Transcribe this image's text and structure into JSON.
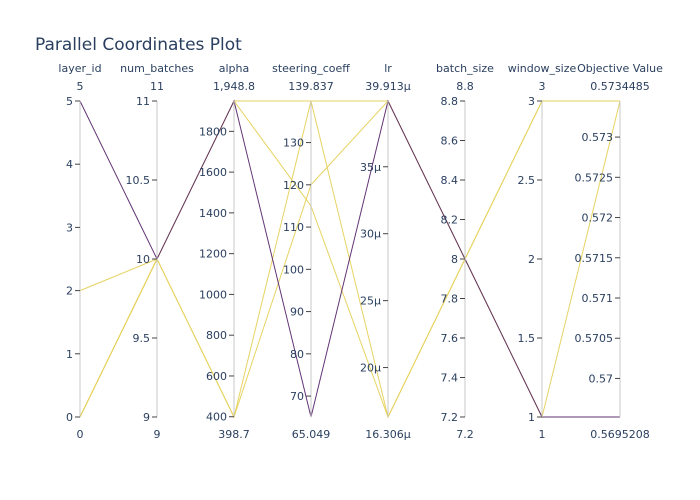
{
  "chart_data": {
    "type": "parallel_coordinates",
    "title": "Parallel Coordinates Plot",
    "axes": [
      {
        "label": "layer_id",
        "min": 0,
        "max": 5,
        "min_label": "0",
        "max_label": "5",
        "ticks": [
          {
            "v": 0,
            "t": "0"
          },
          {
            "v": 1,
            "t": "1"
          },
          {
            "v": 2,
            "t": "2"
          },
          {
            "v": 3,
            "t": "3"
          },
          {
            "v": 4,
            "t": "4"
          },
          {
            "v": 5,
            "t": "5"
          }
        ]
      },
      {
        "label": "num_batches",
        "min": 9,
        "max": 11,
        "min_label": "9",
        "max_label": "11",
        "ticks": [
          {
            "v": 9,
            "t": "9"
          },
          {
            "v": 9.5,
            "t": "9.5"
          },
          {
            "v": 10,
            "t": "10"
          },
          {
            "v": 10.5,
            "t": "10.5"
          },
          {
            "v": 11,
            "t": "11"
          }
        ]
      },
      {
        "label": "alpha",
        "min": 398.7,
        "max": 1948.8,
        "min_label": "398.7",
        "max_label": "1,948.8",
        "ticks": [
          {
            "v": 400,
            "t": "400"
          },
          {
            "v": 600,
            "t": "600"
          },
          {
            "v": 800,
            "t": "800"
          },
          {
            "v": 1000,
            "t": "1000"
          },
          {
            "v": 1200,
            "t": "1200"
          },
          {
            "v": 1400,
            "t": "1400"
          },
          {
            "v": 1600,
            "t": "1600"
          },
          {
            "v": 1800,
            "t": "1800"
          }
        ]
      },
      {
        "label": "steering_coeff",
        "min": 65.049,
        "max": 139.837,
        "min_label": "65.049",
        "max_label": "139.837",
        "ticks": [
          {
            "v": 70,
            "t": "70"
          },
          {
            "v": 80,
            "t": "80"
          },
          {
            "v": 90,
            "t": "90"
          },
          {
            "v": 100,
            "t": "100"
          },
          {
            "v": 110,
            "t": "110"
          },
          {
            "v": 120,
            "t": "120"
          },
          {
            "v": 130,
            "t": "130"
          }
        ]
      },
      {
        "label": "lr",
        "min": 16.306,
        "max": 39.913,
        "min_label": "16.306µ",
        "max_label": "39.913µ",
        "ticks": [
          {
            "v": 20,
            "t": "20µ"
          },
          {
            "v": 25,
            "t": "25µ"
          },
          {
            "v": 30,
            "t": "30µ"
          },
          {
            "v": 35,
            "t": "35µ"
          }
        ]
      },
      {
        "label": "batch_size",
        "min": 7.2,
        "max": 8.8,
        "min_label": "7.2",
        "max_label": "8.8",
        "ticks": [
          {
            "v": 7.2,
            "t": "7.2"
          },
          {
            "v": 7.4,
            "t": "7.4"
          },
          {
            "v": 7.6,
            "t": "7.6"
          },
          {
            "v": 7.8,
            "t": "7.8"
          },
          {
            "v": 8,
            "t": "8"
          },
          {
            "v": 8.2,
            "t": "8.2"
          },
          {
            "v": 8.4,
            "t": "8.4"
          },
          {
            "v": 8.6,
            "t": "8.6"
          },
          {
            "v": 8.8,
            "t": "8.8"
          }
        ]
      },
      {
        "label": "window_size",
        "min": 1,
        "max": 3,
        "min_label": "1",
        "max_label": "3",
        "ticks": [
          {
            "v": 1,
            "t": "1"
          },
          {
            "v": 1.5,
            "t": "1.5"
          },
          {
            "v": 2,
            "t": "2"
          },
          {
            "v": 2.5,
            "t": "2.5"
          },
          {
            "v": 3,
            "t": "3"
          }
        ]
      },
      {
        "label": "Objective Value",
        "min": 0.5695208,
        "max": 0.5734485,
        "min_label": "0.5695208",
        "max_label": "0.5734485",
        "ticks": [
          {
            "v": 0.57,
            "t": "0.57"
          },
          {
            "v": 0.5705,
            "t": "0.5705"
          },
          {
            "v": 0.571,
            "t": "0.571"
          },
          {
            "v": 0.5715,
            "t": "0.5715"
          },
          {
            "v": 0.572,
            "t": "0.572"
          },
          {
            "v": 0.5725,
            "t": "0.5725"
          },
          {
            "v": 0.573,
            "t": "0.573"
          }
        ]
      }
    ],
    "series": [
      {
        "values": [
          0,
          10,
          1948.8,
          139.837,
          16.306,
          8,
          3,
          0.5734485
        ],
        "color": "#e6d15a"
      },
      {
        "values": [
          2,
          10,
          398.7,
          139.837,
          39.913,
          8,
          1,
          0.5734485
        ],
        "color": "#e6d15a"
      },
      {
        "values": [
          0,
          10,
          398.7,
          120,
          39.913,
          8,
          1,
          0.5695208
        ],
        "color": "#e6d15a"
      },
      {
        "values": [
          0,
          10,
          1948.8,
          115,
          16.306,
          8,
          3,
          0.5734485
        ],
        "color": "#e6d15a"
      },
      {
        "values": [
          5,
          10,
          1948.8,
          65.049,
          39.913,
          8,
          1,
          0.5695208
        ],
        "color": "#5b2a6e"
      }
    ]
  }
}
